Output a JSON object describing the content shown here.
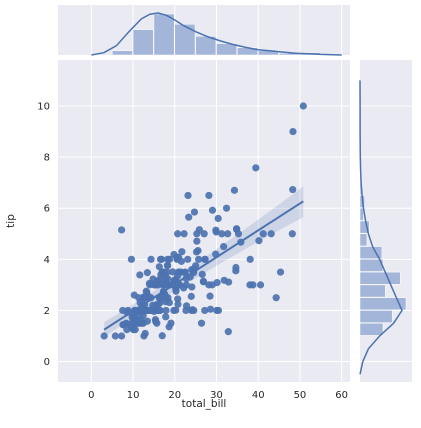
{
  "chart_data": {
    "type": "scatter",
    "xlabel": "total_bill",
    "ylabel": "tip",
    "xlim": [
      -8,
      62
    ],
    "ylim": [
      -0.8,
      11.8
    ],
    "xticks": [
      0,
      10,
      20,
      30,
      40,
      50,
      60
    ],
    "yticks": [
      0,
      2,
      4,
      6,
      8,
      10
    ],
    "xtick_labels": [
      "0",
      "10",
      "20",
      "30",
      "40",
      "50",
      "60"
    ],
    "ytick_labels": [
      "0",
      "2",
      "4",
      "6",
      "8",
      "10"
    ],
    "grid": true,
    "colors": {
      "point": "#4c72b0",
      "line": "#4c72b0",
      "background": "#eaeaf2",
      "grid": "#ffffff",
      "hist": "#a3b5d8"
    },
    "points": [
      [
        3.07,
        1.0
      ],
      [
        5.75,
        1.0
      ],
      [
        7.25,
        1.0
      ],
      [
        7.25,
        5.15
      ],
      [
        7.51,
        2.0
      ],
      [
        7.56,
        1.44
      ],
      [
        7.74,
        1.44
      ],
      [
        8.35,
        1.5
      ],
      [
        8.51,
        1.25
      ],
      [
        8.52,
        1.48
      ],
      [
        8.58,
        1.92
      ],
      [
        8.77,
        2.0
      ],
      [
        9.55,
        1.45
      ],
      [
        9.6,
        4.0
      ],
      [
        9.68,
        1.32
      ],
      [
        9.78,
        1.73
      ],
      [
        9.94,
        1.56
      ],
      [
        10.07,
        1.25
      ],
      [
        10.07,
        1.83
      ],
      [
        10.27,
        1.71
      ],
      [
        10.29,
        2.6
      ],
      [
        10.33,
        1.67
      ],
      [
        10.34,
        1.66
      ],
      [
        10.34,
        2.0
      ],
      [
        10.51,
        1.25
      ],
      [
        10.59,
        1.61
      ],
      [
        10.63,
        2.0
      ],
      [
        10.65,
        1.5
      ],
      [
        11.02,
        1.98
      ],
      [
        11.17,
        1.5
      ],
      [
        11.24,
        1.76
      ],
      [
        11.35,
        2.5
      ],
      [
        11.38,
        2.0
      ],
      [
        11.59,
        1.5
      ],
      [
        11.61,
        3.39
      ],
      [
        11.69,
        2.31
      ],
      [
        11.87,
        1.63
      ],
      [
        12.02,
        1.97
      ],
      [
        12.03,
        1.5
      ],
      [
        12.16,
        2.2
      ],
      [
        12.26,
        2.0
      ],
      [
        12.43,
        1.8
      ],
      [
        12.46,
        1.5
      ],
      [
        12.48,
        2.52
      ],
      [
        12.54,
        2.5
      ],
      [
        12.6,
        1.0
      ],
      [
        12.66,
        2.5
      ],
      [
        12.69,
        2.0
      ],
      [
        12.74,
        2.01
      ],
      [
        12.76,
        2.23
      ],
      [
        12.9,
        1.1
      ],
      [
        13.0,
        2.0
      ],
      [
        13.03,
        2.0
      ],
      [
        13.13,
        2.0
      ],
      [
        13.16,
        2.75
      ],
      [
        13.27,
        2.5
      ],
      [
        13.28,
        2.72
      ],
      [
        13.37,
        2.0
      ],
      [
        13.39,
        2.61
      ],
      [
        13.42,
        1.58
      ],
      [
        13.42,
        3.48
      ],
      [
        13.51,
        2.0
      ],
      [
        13.81,
        2.0
      ],
      [
        13.94,
        3.06
      ],
      [
        14.0,
        3.0
      ],
      [
        14.07,
        2.5
      ],
      [
        14.15,
        2.0
      ],
      [
        14.26,
        2.5
      ],
      [
        14.31,
        4.0
      ],
      [
        14.48,
        2.0
      ],
      [
        14.52,
        2.0
      ],
      [
        14.73,
        2.2
      ],
      [
        14.78,
        3.23
      ],
      [
        14.83,
        3.02
      ],
      [
        15.01,
        2.09
      ],
      [
        15.04,
        1.96
      ],
      [
        15.06,
        3.0
      ],
      [
        15.36,
        1.64
      ],
      [
        15.38,
        3.0
      ],
      [
        15.42,
        1.57
      ],
      [
        15.48,
        2.02
      ],
      [
        15.53,
        3.0
      ],
      [
        15.69,
        1.5
      ],
      [
        15.69,
        3.0
      ],
      [
        15.77,
        2.23
      ],
      [
        15.81,
        3.16
      ],
      [
        15.95,
        2.0
      ],
      [
        15.98,
        2.03
      ],
      [
        15.98,
        3.0
      ],
      [
        16.0,
        2.0
      ],
      [
        16.04,
        2.24
      ],
      [
        16.21,
        2.0
      ],
      [
        16.27,
        2.5
      ],
      [
        16.29,
        3.71
      ],
      [
        16.31,
        2.0
      ],
      [
        16.4,
        2.5
      ],
      [
        16.43,
        2.3
      ],
      [
        16.45,
        2.47
      ],
      [
        16.47,
        3.23
      ],
      [
        16.49,
        2.0
      ],
      [
        16.58,
        4.0
      ],
      [
        16.66,
        3.4
      ],
      [
        16.82,
        4.0
      ],
      [
        16.93,
        3.07
      ],
      [
        16.97,
        3.5
      ],
      [
        16.99,
        1.01
      ],
      [
        17.07,
        3.0
      ],
      [
        17.26,
        2.74
      ],
      [
        17.29,
        2.71
      ],
      [
        17.31,
        3.5
      ],
      [
        17.46,
        2.54
      ],
      [
        17.47,
        3.5
      ],
      [
        17.51,
        3.0
      ],
      [
        17.59,
        2.64
      ],
      [
        17.78,
        3.27
      ],
      [
        17.8,
        2.5
      ],
      [
        17.81,
        2.34
      ],
      [
        17.82,
        1.75
      ],
      [
        17.89,
        2.0
      ],
      [
        17.92,
        3.08
      ],
      [
        18.04,
        3.0
      ],
      [
        18.15,
        3.5
      ],
      [
        18.24,
        3.76
      ],
      [
        18.26,
        3.25
      ],
      [
        18.28,
        4.0
      ],
      [
        18.29,
        3.76
      ],
      [
        18.35,
        2.5
      ],
      [
        18.43,
        3.0
      ],
      [
        18.64,
        1.36
      ],
      [
        18.69,
        2.31
      ],
      [
        18.71,
        4.0
      ],
      [
        18.78,
        3.0
      ],
      [
        19.08,
        1.5
      ],
      [
        19.44,
        3.0
      ],
      [
        19.49,
        3.51
      ],
      [
        19.65,
        3.0
      ],
      [
        19.77,
        2.0
      ],
      [
        19.81,
        4.19
      ],
      [
        19.82,
        3.18
      ],
      [
        20.08,
        3.15
      ],
      [
        20.23,
        2.01
      ],
      [
        20.27,
        2.83
      ],
      [
        20.29,
        2.75
      ],
      [
        20.29,
        3.21
      ],
      [
        20.45,
        3.0
      ],
      [
        20.49,
        4.06
      ],
      [
        20.53,
        4.0
      ],
      [
        20.65,
        3.35
      ],
      [
        20.69,
        2.45
      ],
      [
        20.69,
        5.0
      ],
      [
        20.76,
        2.24
      ],
      [
        20.9,
        3.5
      ],
      [
        20.92,
        4.08
      ],
      [
        21.01,
        3.5
      ],
      [
        21.01,
        3.0
      ],
      [
        21.16,
        3.0
      ],
      [
        21.5,
        3.5
      ],
      [
        21.58,
        3.92
      ],
      [
        21.7,
        4.3
      ],
      [
        22.12,
        2.88
      ],
      [
        22.23,
        5.0
      ],
      [
        22.42,
        3.48
      ],
      [
        22.49,
        3.5
      ],
      [
        22.67,
        2.0
      ],
      [
        22.75,
        3.25
      ],
      [
        22.76,
        3.0
      ],
      [
        22.82,
        2.18
      ],
      [
        23.1,
        4.0
      ],
      [
        23.17,
        6.5
      ],
      [
        23.33,
        5.65
      ],
      [
        23.68,
        3.31
      ],
      [
        23.95,
        2.55
      ],
      [
        24.01,
        2.0
      ],
      [
        24.06,
        3.6
      ],
      [
        24.08,
        2.92
      ],
      [
        24.27,
        2.03
      ],
      [
        24.52,
        3.48
      ],
      [
        24.55,
        2.0
      ],
      [
        24.59,
        3.61
      ],
      [
        24.71,
        5.85
      ],
      [
        25.0,
        3.75
      ],
      [
        25.21,
        4.29
      ],
      [
        25.28,
        5.0
      ],
      [
        25.29,
        4.71
      ],
      [
        25.56,
        4.34
      ],
      [
        25.71,
        4.0
      ],
      [
        25.89,
        5.16
      ],
      [
        26.41,
        1.5
      ],
      [
        26.59,
        3.41
      ],
      [
        26.86,
        3.14
      ],
      [
        26.88,
        3.12
      ],
      [
        27.05,
        5.0
      ],
      [
        27.18,
        2.0
      ],
      [
        27.2,
        4.0
      ],
      [
        27.28,
        4.0
      ],
      [
        28.15,
        3.0
      ],
      [
        28.17,
        6.5
      ],
      [
        28.44,
        2.56
      ],
      [
        28.55,
        2.05
      ],
      [
        28.97,
        3.0
      ],
      [
        29.03,
        5.92
      ],
      [
        29.8,
        4.2
      ],
      [
        29.85,
        5.14
      ],
      [
        29.93,
        5.07
      ],
      [
        30.06,
        2.0
      ],
      [
        30.14,
        3.09
      ],
      [
        30.4,
        5.6
      ],
      [
        30.46,
        2.0
      ],
      [
        31.27,
        5.0
      ],
      [
        31.71,
        4.5
      ],
      [
        31.85,
        3.18
      ],
      [
        32.4,
        6.0
      ],
      [
        32.68,
        5.0
      ],
      [
        32.83,
        1.17
      ],
      [
        32.9,
        3.11
      ],
      [
        34.3,
        6.7
      ],
      [
        34.63,
        3.55
      ],
      [
        34.65,
        3.68
      ],
      [
        34.81,
        5.2
      ],
      [
        34.83,
        5.17
      ],
      [
        35.26,
        5.0
      ],
      [
        35.83,
        4.67
      ],
      [
        38.01,
        3.0
      ],
      [
        38.07,
        4.0
      ],
      [
        38.73,
        3.0
      ],
      [
        39.42,
        7.58
      ],
      [
        40.17,
        4.73
      ],
      [
        40.55,
        3.0
      ],
      [
        41.19,
        5.0
      ],
      [
        43.11,
        5.0
      ],
      [
        44.3,
        2.5
      ],
      [
        45.35,
        3.5
      ],
      [
        48.17,
        5.0
      ],
      [
        48.27,
        6.73
      ],
      [
        48.33,
        9.0
      ],
      [
        50.81,
        10.0
      ]
    ],
    "regression": {
      "x": [
        3.07,
        50.81
      ],
      "y": [
        1.25,
        6.27
      ],
      "ci_lower": [
        0.95,
        5.65
      ],
      "ci_upper": [
        1.55,
        6.85
      ]
    },
    "marginal_x": {
      "bin_edges": [
        0,
        5,
        10,
        15,
        20,
        25,
        30,
        35,
        40,
        45,
        50,
        55,
        60
      ],
      "counts": [
        0,
        7,
        42,
        68,
        51,
        31,
        19,
        12,
        7,
        3,
        4,
        0
      ],
      "kde_x": [
        0,
        3,
        6,
        9,
        12,
        14,
        16,
        18,
        20,
        22,
        25,
        28,
        31,
        34,
        37,
        40,
        43,
        46,
        49,
        52,
        55,
        58,
        60
      ],
      "kde_y": [
        0.0,
        0.004,
        0.016,
        0.04,
        0.062,
        0.07,
        0.072,
        0.068,
        0.06,
        0.051,
        0.04,
        0.031,
        0.024,
        0.018,
        0.013,
        0.009,
        0.007,
        0.005,
        0.003,
        0.002,
        0.001,
        0.0005,
        0.0
      ]
    },
    "marginal_y": {
      "bin_edges": [
        1.0,
        1.5,
        2.0,
        2.5,
        3.0,
        3.5,
        4.0,
        4.5,
        5.0,
        5.5,
        6.0,
        6.5,
        7.0
      ],
      "counts": [
        20,
        28,
        40,
        22,
        35,
        20,
        19,
        6,
        8,
        3,
        4,
        1
      ],
      "kde_y": [
        -0.5,
        0.0,
        0.5,
        1.0,
        1.5,
        2.0,
        2.5,
        3.0,
        3.5,
        4.0,
        4.5,
        5.0,
        5.5,
        6.0,
        6.5,
        7.0,
        7.5,
        8.0,
        9.0,
        10.0,
        11.0
      ],
      "kde_x": [
        0.0,
        0.02,
        0.06,
        0.14,
        0.24,
        0.3,
        0.26,
        0.22,
        0.18,
        0.14,
        0.09,
        0.06,
        0.04,
        0.025,
        0.015,
        0.008,
        0.004,
        0.002,
        0.001,
        0.0005,
        0.0
      ]
    }
  }
}
